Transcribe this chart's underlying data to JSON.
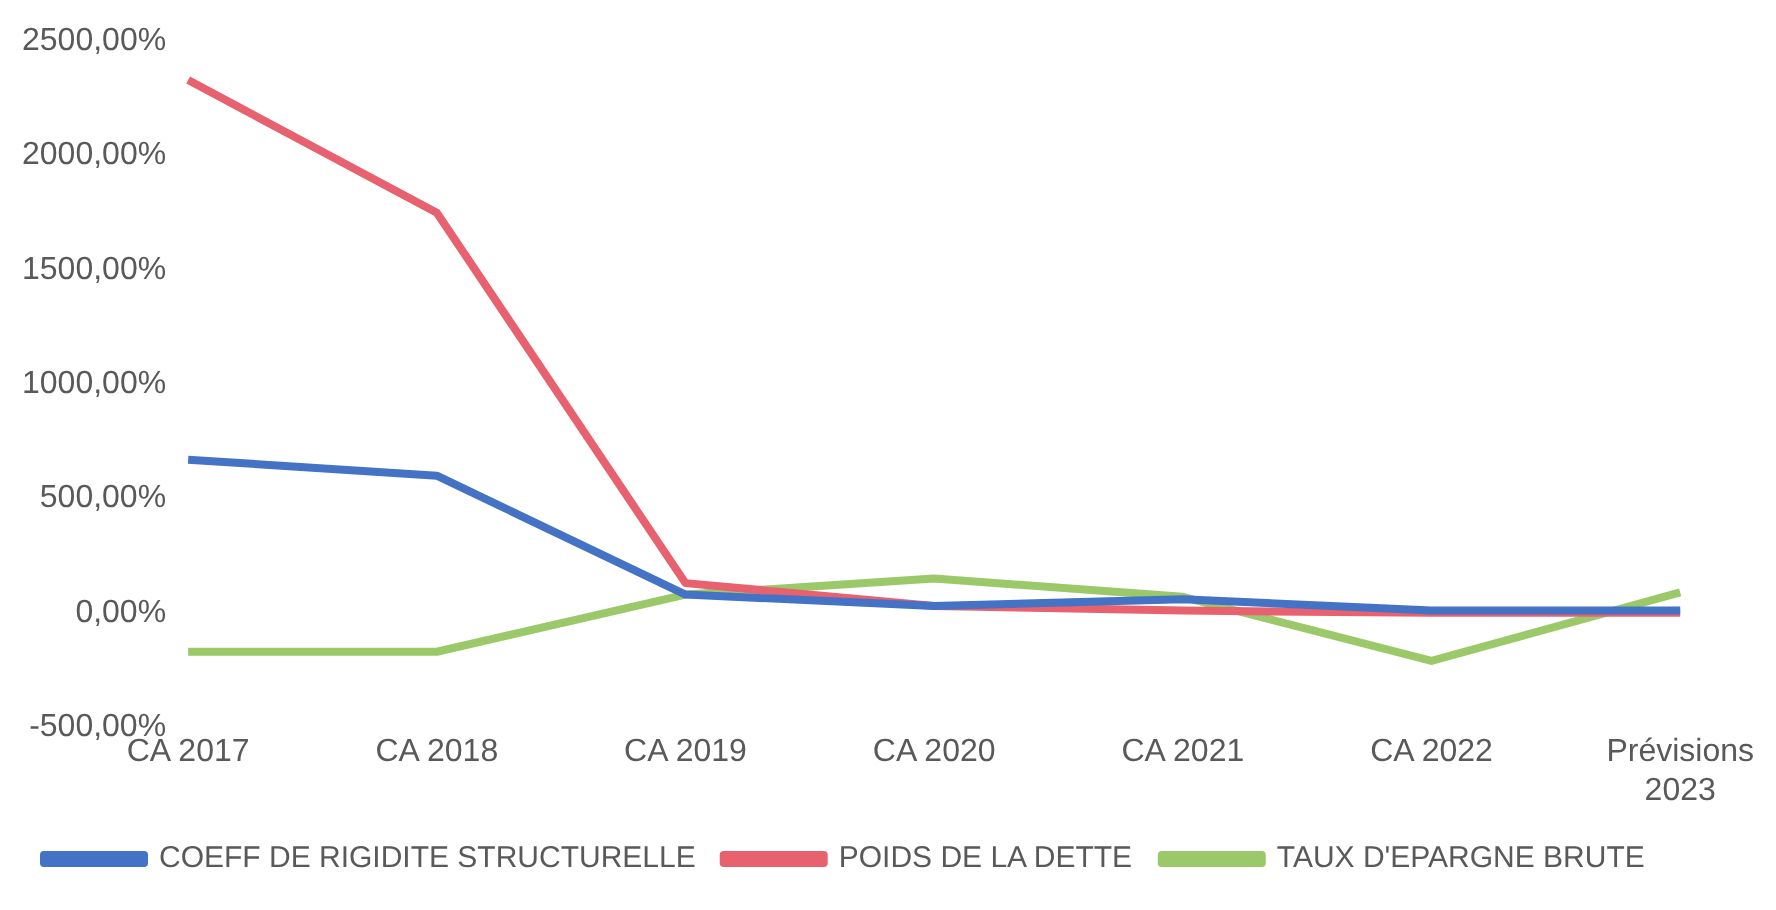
{
  "chart_data": {
    "type": "line",
    "categories": [
      "CA 2017",
      "CA 2018",
      "CA 2019",
      "CA 2020",
      "CA 2021",
      "CA 2022",
      "Prévisions 2023"
    ],
    "series": [
      {
        "name": "COEFF DE RIGIDITE STRUCTURELLE",
        "color": "#4472c4",
        "values": [
          670,
          600,
          80,
          30,
          60,
          10,
          10
        ]
      },
      {
        "name": "POIDS DE LA DETTE",
        "color": "#e8616f",
        "values": [
          2330,
          1750,
          130,
          30,
          10,
          0,
          0
        ]
      },
      {
        "name": "TAUX D'EPARGNE BRUTE",
        "color": "#9bc96a",
        "values": [
          -170,
          -170,
          80,
          150,
          70,
          -210,
          90
        ]
      }
    ],
    "ylim": [
      -500,
      2500
    ],
    "yticks": [
      {
        "value": -500,
        "label": "-500,00%"
      },
      {
        "value": 0,
        "label": "0,00%"
      },
      {
        "value": 500,
        "label": "500,00%"
      },
      {
        "value": 1000,
        "label": "1000,00%"
      },
      {
        "value": 1500,
        "label": "1500,00%"
      },
      {
        "value": 2000,
        "label": "2000,00%"
      },
      {
        "value": 2500,
        "label": "2500,00%"
      }
    ],
    "grid": false,
    "legend": "bottom",
    "marker": "none",
    "line_style": "solid"
  }
}
